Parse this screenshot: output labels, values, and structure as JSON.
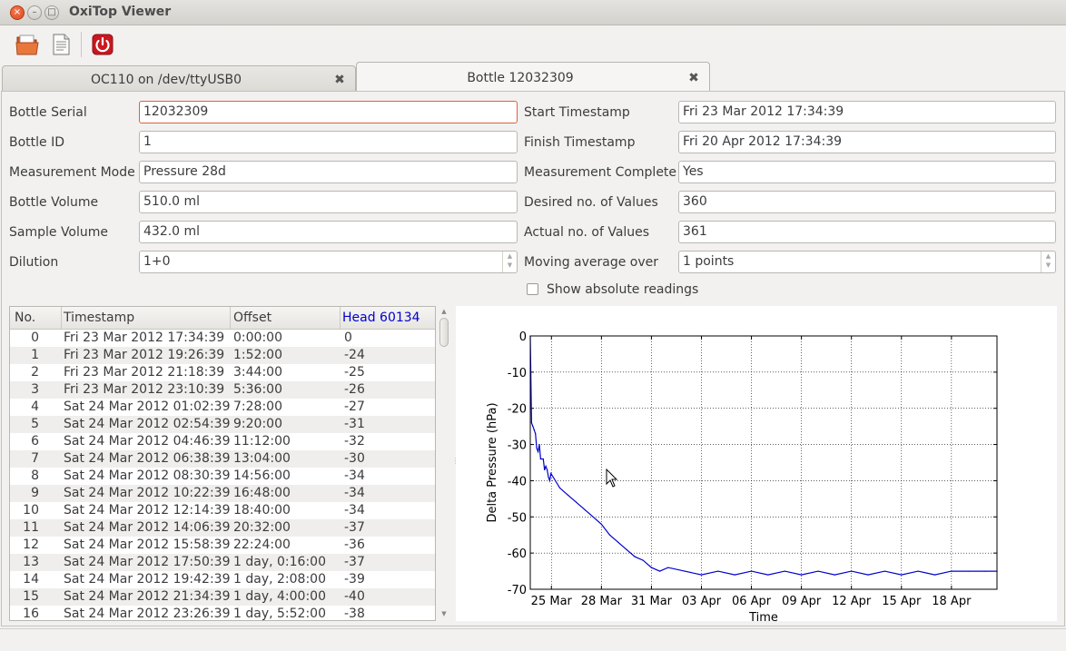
{
  "window": {
    "title": "OxiTop Viewer"
  },
  "toolbar": {
    "icons": [
      "open-folder-icon",
      "document-icon",
      "power-icon"
    ]
  },
  "tabs": [
    {
      "label": "OC110 on /dev/ttyUSB0",
      "active": false
    },
    {
      "label": "Bottle 12032309",
      "active": true
    }
  ],
  "form": {
    "bottle_serial": {
      "label": "Bottle Serial",
      "value": "12032309"
    },
    "bottle_id": {
      "label": "Bottle ID",
      "value": "1"
    },
    "measurement_mode": {
      "label": "Measurement Mode",
      "value": "Pressure 28d"
    },
    "bottle_volume": {
      "label": "Bottle Volume",
      "value": "510.0 ml"
    },
    "sample_volume": {
      "label": "Sample Volume",
      "value": "432.0 ml"
    },
    "dilution": {
      "label": "Dilution",
      "value": "1+0"
    },
    "start_timestamp": {
      "label": "Start Timestamp",
      "value": "Fri 23 Mar 2012 17:34:39"
    },
    "finish_timestamp": {
      "label": "Finish Timestamp",
      "value": "Fri 20 Apr 2012 17:34:39"
    },
    "measurement_complete": {
      "label": "Measurement Complete",
      "value": "Yes"
    },
    "desired_values": {
      "label": "Desired no. of Values",
      "value": "360"
    },
    "actual_values": {
      "label": "Actual no. of Values",
      "value": "361"
    },
    "moving_average": {
      "label": "Moving average over",
      "value": "1 points"
    },
    "show_absolute": {
      "label": "Show absolute readings",
      "checked": false
    }
  },
  "table": {
    "headers": [
      "No.",
      "Timestamp",
      "Offset",
      "Head 60134"
    ],
    "head_color": "#0000cc",
    "rows": [
      [
        "0",
        "Fri 23 Mar 2012 17:34:39",
        "0:00:00",
        "0"
      ],
      [
        "1",
        "Fri 23 Mar 2012 19:26:39",
        "1:52:00",
        "-24"
      ],
      [
        "2",
        "Fri 23 Mar 2012 21:18:39",
        "3:44:00",
        "-25"
      ],
      [
        "3",
        "Fri 23 Mar 2012 23:10:39",
        "5:36:00",
        "-26"
      ],
      [
        "4",
        "Sat 24 Mar 2012 01:02:39",
        "7:28:00",
        "-27"
      ],
      [
        "5",
        "Sat 24 Mar 2012 02:54:39",
        "9:20:00",
        "-31"
      ],
      [
        "6",
        "Sat 24 Mar 2012 04:46:39",
        "11:12:00",
        "-32"
      ],
      [
        "7",
        "Sat 24 Mar 2012 06:38:39",
        "13:04:00",
        "-30"
      ],
      [
        "8",
        "Sat 24 Mar 2012 08:30:39",
        "14:56:00",
        "-34"
      ],
      [
        "9",
        "Sat 24 Mar 2012 10:22:39",
        "16:48:00",
        "-34"
      ],
      [
        "10",
        "Sat 24 Mar 2012 12:14:39",
        "18:40:00",
        "-34"
      ],
      [
        "11",
        "Sat 24 Mar 2012 14:06:39",
        "20:32:00",
        "-37"
      ],
      [
        "12",
        "Sat 24 Mar 2012 15:58:39",
        "22:24:00",
        "-36"
      ],
      [
        "13",
        "Sat 24 Mar 2012 17:50:39",
        "1 day, 0:16:00",
        "-37"
      ],
      [
        "14",
        "Sat 24 Mar 2012 19:42:39",
        "1 day, 2:08:00",
        "-39"
      ],
      [
        "15",
        "Sat 24 Mar 2012 21:34:39",
        "1 day, 4:00:00",
        "-40"
      ],
      [
        "16",
        "Sat 24 Mar 2012 23:26:39",
        "1 day, 5:52:00",
        "-38"
      ]
    ]
  },
  "chart_data": {
    "type": "line",
    "xlabel": "Time",
    "ylabel": "Delta Pressure (hPa)",
    "ylim": [
      -70,
      0
    ],
    "xlim": [
      "2012-03-23 17:34",
      "2012-04-20 17:34"
    ],
    "yticks": [
      "0",
      "-10",
      "-20",
      "-30",
      "-40",
      "-50",
      "-60",
      "-70"
    ],
    "xtick_dates": [
      "2012-03-25",
      "2012-03-28",
      "2012-03-31",
      "2012-04-03",
      "2012-04-06",
      "2012-04-09",
      "2012-04-12",
      "2012-04-15",
      "2012-04-18"
    ],
    "xticks": [
      "25 Mar",
      "28 Mar",
      "31 Mar",
      "03 Apr",
      "06 Apr",
      "09 Apr",
      "12 Apr",
      "15 Apr",
      "18 Apr"
    ],
    "grid": true,
    "line_color": "#0000cc",
    "series": [
      {
        "x": [
          "2012-03-23 17:34",
          "2012-03-23 19:26",
          "2012-03-23 21:18",
          "2012-03-23 23:10",
          "2012-03-24 01:02",
          "2012-03-24 02:54",
          "2012-03-24 04:46",
          "2012-03-24 06:38",
          "2012-03-24 08:30",
          "2012-03-24 10:22",
          "2012-03-24 12:14",
          "2012-03-24 14:06",
          "2012-03-24 15:58",
          "2012-03-24 17:50",
          "2012-03-24 19:42",
          "2012-03-24 21:34",
          "2012-03-24 23:26",
          "2012-03-25 12:00",
          "2012-03-26 00:00",
          "2012-03-26 12:00",
          "2012-03-27 00:00",
          "2012-03-27 12:00",
          "2012-03-28 00:00",
          "2012-03-28 12:00",
          "2012-03-29 00:00",
          "2012-03-29 12:00",
          "2012-03-30 00:00",
          "2012-03-30 12:00",
          "2012-03-31 00:00",
          "2012-03-31 12:00",
          "2012-04-01 00:00",
          "2012-04-02 00:00",
          "2012-04-03 00:00",
          "2012-04-04 00:00",
          "2012-04-05 00:00",
          "2012-04-06 00:00",
          "2012-04-07 00:00",
          "2012-04-08 00:00",
          "2012-04-09 00:00",
          "2012-04-10 00:00",
          "2012-04-11 00:00",
          "2012-04-12 00:00",
          "2012-04-13 00:00",
          "2012-04-14 00:00",
          "2012-04-15 00:00",
          "2012-04-16 00:00",
          "2012-04-17 00:00",
          "2012-04-18 00:00",
          "2012-04-19 00:00",
          "2012-04-20 00:00",
          "2012-04-20 17:34"
        ],
        "y": [
          0,
          -24,
          -25,
          -26,
          -27,
          -31,
          -32,
          -30,
          -34,
          -34,
          -34,
          -37,
          -36,
          -37,
          -39,
          -40,
          -38,
          -42,
          -44,
          -46,
          -48,
          -50,
          -52,
          -55,
          -57,
          -59,
          -61,
          -62,
          -64,
          -65,
          -64,
          -65,
          -66,
          -65,
          -66,
          -65,
          -66,
          -65,
          -66,
          -65,
          -66,
          -65,
          -66,
          -65,
          -66,
          -65,
          -66,
          -65,
          -65,
          -65,
          -65
        ]
      }
    ]
  }
}
